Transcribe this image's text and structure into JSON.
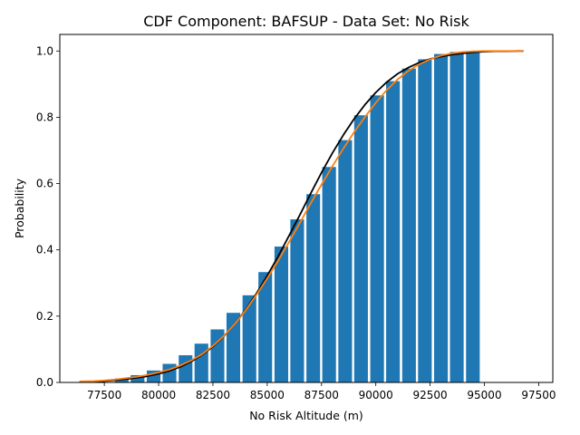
{
  "chart_data": {
    "type": "bar",
    "title": "CDF Component: BAFSUP - Data Set: No Risk",
    "xlabel": "No Risk Altitude (m)",
    "ylabel": "Probability",
    "xlim": [
      75450,
      98150
    ],
    "ylim": [
      0,
      1.05
    ],
    "xticks": [
      77500,
      80000,
      82500,
      85000,
      87500,
      90000,
      92500,
      95000,
      97500
    ],
    "xtick_labels": [
      "77500",
      "80000",
      "82500",
      "85000",
      "87500",
      "90000",
      "92500",
      "95000",
      "97500"
    ],
    "yticks": [
      0.0,
      0.2,
      0.4,
      0.6,
      0.8,
      1.0
    ],
    "ytick_labels": [
      "0.0",
      "0.2",
      "0.4",
      "0.6",
      "0.8",
      "1.0"
    ],
    "bar_color": "#1f77b4",
    "bar_width": 630,
    "bars": {
      "x": [
        78300,
        79030,
        79770,
        80500,
        81240,
        81970,
        82710,
        83440,
        84180,
        84910,
        85650,
        86380,
        87120,
        87850,
        88590,
        89320,
        90060,
        90790,
        91530,
        92260,
        93000,
        93730,
        94470
      ],
      "values": [
        0.012,
        0.022,
        0.036,
        0.056,
        0.082,
        0.117,
        0.16,
        0.21,
        0.263,
        0.333,
        0.41,
        0.492,
        0.568,
        0.65,
        0.731,
        0.806,
        0.866,
        0.909,
        0.947,
        0.975,
        0.991,
        0.997,
        1.0
      ]
    },
    "series": [
      {
        "type": "line",
        "color": "#000000",
        "x": [
          76350,
          77000,
          77500,
          78000,
          78500,
          79000,
          79500,
          80000,
          80500,
          81000,
          81500,
          82000,
          82500,
          83000,
          83500,
          84000,
          84500,
          85000,
          85500,
          86000,
          86500,
          87000,
          87500,
          88000,
          88500,
          89000,
          89500,
          90000,
          90500,
          91000,
          91500,
          92000,
          92500,
          93000,
          93500,
          94000,
          94500,
          95000,
          95500,
          96000,
          96500,
          96800
        ],
        "values": [
          0.001,
          0.003,
          0.004,
          0.007,
          0.01,
          0.014,
          0.019,
          0.026,
          0.035,
          0.047,
          0.063,
          0.083,
          0.108,
          0.139,
          0.176,
          0.219,
          0.268,
          0.322,
          0.38,
          0.442,
          0.505,
          0.57,
          0.633,
          0.692,
          0.746,
          0.795,
          0.838,
          0.875,
          0.906,
          0.931,
          0.95,
          0.965,
          0.976,
          0.983,
          0.989,
          0.993,
          0.996,
          0.998,
          0.999,
          0.999,
          1.0,
          1.0
        ]
      },
      {
        "type": "line",
        "color": "#ff7f0e",
        "x": [
          76350,
          77000,
          77500,
          78000,
          78500,
          79000,
          79500,
          80000,
          80500,
          81000,
          81500,
          82000,
          82500,
          83000,
          83500,
          84000,
          84500,
          85000,
          85500,
          86000,
          86500,
          87000,
          87500,
          88000,
          88500,
          89000,
          89500,
          90000,
          90500,
          91000,
          91500,
          92000,
          92500,
          93000,
          93500,
          94000,
          94500,
          95000,
          95500,
          96000,
          96500,
          96800
        ],
        "values": [
          0.003,
          0.004,
          0.006,
          0.009,
          0.013,
          0.017,
          0.023,
          0.03,
          0.039,
          0.051,
          0.066,
          0.085,
          0.11,
          0.14,
          0.176,
          0.217,
          0.264,
          0.314,
          0.367,
          0.423,
          0.481,
          0.54,
          0.597,
          0.652,
          0.705,
          0.755,
          0.801,
          0.844,
          0.882,
          0.914,
          0.94,
          0.96,
          0.975,
          0.986,
          0.993,
          0.997,
          0.999,
          1.0,
          1.0,
          1.0,
          1.0,
          1.0
        ]
      }
    ],
    "grid": false,
    "legend": "none"
  }
}
